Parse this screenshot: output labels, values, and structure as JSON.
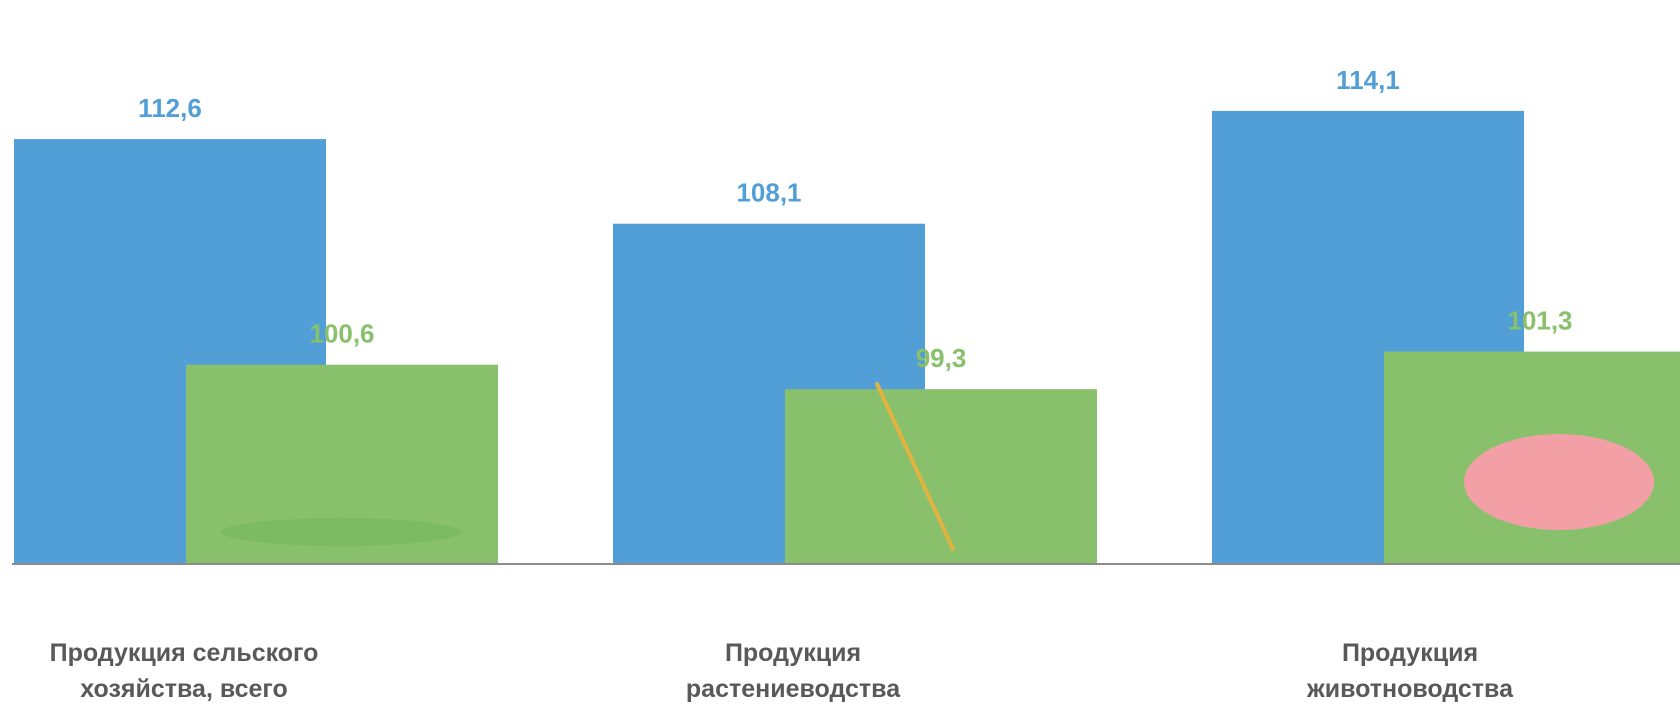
{
  "chart_data": {
    "type": "bar",
    "categories": [
      "Продукция сельского хозяйства, всего",
      "Продукция растениеводства",
      "Продукция животноводства"
    ],
    "category_lines": [
      [
        "Продукция сельского",
        "хозяйства, всего"
      ],
      [
        "Продукция",
        "растениеводства"
      ],
      [
        "Продукция",
        "животноводства"
      ]
    ],
    "series": [
      {
        "values": [
          112.6,
          108.1,
          114.1
        ],
        "labels": [
          "112,6",
          "108,1",
          "114,1"
        ],
        "color": "#529FD7"
      },
      {
        "values": [
          100.6,
          99.3,
          101.3
        ],
        "labels": [
          "100,6",
          "99,3",
          "101,3"
        ],
        "color": "#88C06C"
      }
    ],
    "icons": [
      "farm-factory-icon",
      "wheat-pea-icon",
      "pig-icon"
    ],
    "title": "",
    "xlabel": "",
    "ylabel": "",
    "grid": false,
    "legend": "none"
  }
}
